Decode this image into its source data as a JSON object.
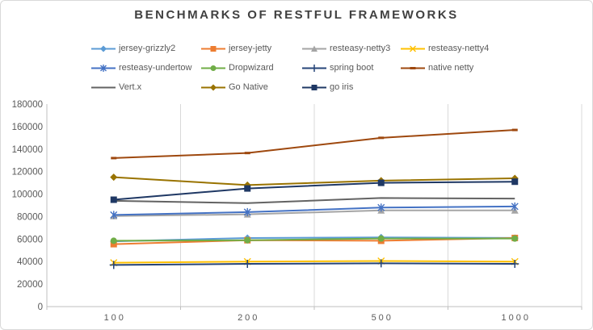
{
  "title": "BENCHMARKS OF RESTFUL FRAMEWORKS",
  "styles": {
    "background": "#FFFFFF",
    "frame_border": "#D9D9D9",
    "title_color": "#404040",
    "axis_text_color": "#595959",
    "grid_color": "#D9D9D9",
    "axis_line_color": "#BFBFBF"
  },
  "chart_data": {
    "type": "line",
    "title": "BENCHMARKS OF RESTFUL FRAMEWORKS",
    "categories": [
      "100",
      "200",
      "500",
      "1000"
    ],
    "y_ticks": [
      0,
      20000,
      40000,
      60000,
      80000,
      100000,
      120000,
      140000,
      160000,
      180000
    ],
    "ylim": [
      0,
      180000
    ],
    "grid": "vertical-only",
    "legend_position": "top",
    "series": [
      {
        "name": "jersey-grizzly2",
        "color": "#5B9BD5",
        "marker": "diamond",
        "values": [
          58000,
          61000,
          61500,
          61000
        ]
      },
      {
        "name": "jersey-jetty",
        "color": "#ED7D31",
        "marker": "square",
        "values": [
          55500,
          59000,
          58500,
          61000
        ]
      },
      {
        "name": "resteasy-netty3",
        "color": "#A5A5A5",
        "marker": "triangle",
        "values": [
          80500,
          82000,
          85500,
          85500
        ]
      },
      {
        "name": "resteasy-netty4",
        "color": "#FFC000",
        "marker": "x",
        "values": [
          39000,
          40000,
          40500,
          40000
        ]
      },
      {
        "name": "resteasy-undertow",
        "color": "#4472C4",
        "marker": "asterisk",
        "values": [
          81500,
          84000,
          88000,
          89000
        ]
      },
      {
        "name": "Dropwizard",
        "color": "#70AD47",
        "marker": "circle",
        "values": [
          58500,
          59000,
          60500,
          60500
        ]
      },
      {
        "name": "spring boot",
        "color": "#264478",
        "marker": "plus",
        "values": [
          37000,
          38000,
          38500,
          38000
        ]
      },
      {
        "name": "native netty",
        "color": "#9E480E",
        "marker": "dash",
        "values": [
          132000,
          136500,
          150000,
          157000
        ]
      },
      {
        "name": "Vert.x",
        "color": "#636363",
        "marker": "none",
        "values": [
          94000,
          92000,
          96500,
          96000
        ]
      },
      {
        "name": "Go Native",
        "color": "#997300",
        "marker": "diamond",
        "values": [
          115000,
          108000,
          112000,
          114000
        ]
      },
      {
        "name": "go iris",
        "color": "#1F3864",
        "marker": "square",
        "values": [
          95000,
          105000,
          110000,
          111000
        ]
      }
    ]
  }
}
